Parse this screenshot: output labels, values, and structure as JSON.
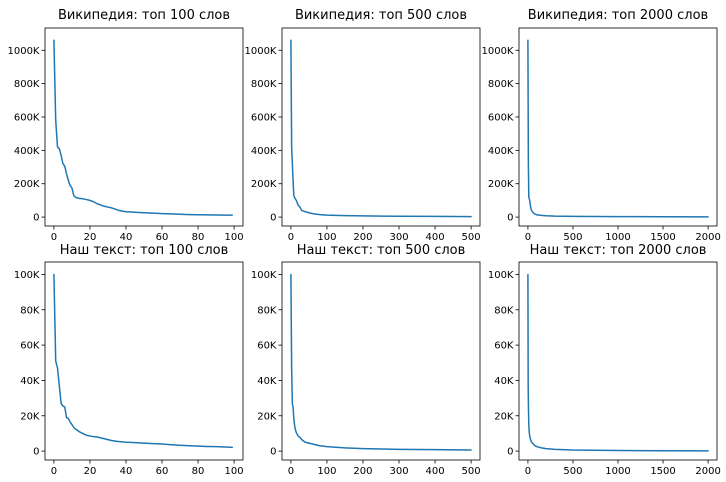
{
  "figure": {
    "line_color": "#1f77b4",
    "background": "#ffffff"
  },
  "chart_data": [
    {
      "type": "line",
      "title": "Википедия: топ 100 слов",
      "xlabel": "",
      "ylabel": "",
      "xlim": [
        0,
        100
      ],
      "ylim": [
        0,
        1080000
      ],
      "x_ticks": [
        0,
        20,
        40,
        60,
        80,
        100
      ],
      "x_tick_labels": [
        "0",
        "20",
        "40",
        "60",
        "80",
        "100"
      ],
      "y_ticks": [
        0,
        200000,
        400000,
        600000,
        800000,
        1000000
      ],
      "y_tick_labels": [
        "0",
        "200K",
        "400K",
        "600K",
        "800K",
        "1000K"
      ],
      "grid": false,
      "x": [
        0,
        1,
        2,
        3,
        4,
        5,
        6,
        7,
        8,
        9,
        10,
        11,
        12,
        14,
        16,
        18,
        20,
        22,
        24,
        26,
        28,
        30,
        32,
        34,
        36,
        38,
        40,
        45,
        50,
        55,
        60,
        65,
        70,
        75,
        80,
        85,
        90,
        95,
        99
      ],
      "y": [
        1060000,
        580000,
        420000,
        410000,
        370000,
        320000,
        305000,
        260000,
        220000,
        190000,
        175000,
        130000,
        118000,
        112000,
        110000,
        105000,
        100000,
        92000,
        80000,
        72000,
        65000,
        60000,
        55000,
        48000,
        40000,
        36000,
        32000,
        29000,
        26000,
        24000,
        21000,
        19000,
        17000,
        15000,
        14000,
        13000,
        12500,
        12000,
        11500
      ]
    },
    {
      "type": "line",
      "title": "Википедия: топ 500 слов",
      "xlabel": "",
      "ylabel": "",
      "xlim": [
        0,
        500
      ],
      "ylim": [
        0,
        1080000
      ],
      "x_ticks": [
        0,
        100,
        200,
        300,
        400,
        500
      ],
      "x_tick_labels": [
        "0",
        "100",
        "200",
        "300",
        "400",
        "500"
      ],
      "y_ticks": [
        0,
        200000,
        400000,
        600000,
        800000,
        1000000
      ],
      "y_tick_labels": [
        "0",
        "200K",
        "400K",
        "600K",
        "800K",
        "1000K"
      ],
      "grid": false,
      "x": [
        0,
        2,
        4,
        6,
        8,
        10,
        12,
        15,
        20,
        25,
        30,
        40,
        50,
        60,
        80,
        100,
        150,
        200,
        300,
        400,
        500
      ],
      "y": [
        1060000,
        420000,
        320000,
        220000,
        130000,
        118000,
        110000,
        100000,
        72000,
        60000,
        40000,
        32000,
        26000,
        21000,
        15000,
        12000,
        9000,
        7000,
        5000,
        4000,
        3000
      ]
    },
    {
      "type": "line",
      "title": "Википедия: топ 2000 слов",
      "xlabel": "",
      "ylabel": "",
      "xlim": [
        0,
        2000
      ],
      "ylim": [
        0,
        1080000
      ],
      "x_ticks": [
        0,
        500,
        1000,
        1500,
        2000
      ],
      "x_tick_labels": [
        "0",
        "500",
        "1000",
        "1500",
        "2000"
      ],
      "y_ticks": [
        0,
        200000,
        400000,
        600000,
        800000,
        1000000
      ],
      "y_tick_labels": [
        "0",
        "200K",
        "400K",
        "600K",
        "800K",
        "1000K"
      ],
      "grid": false,
      "x": [
        0,
        5,
        10,
        20,
        30,
        40,
        60,
        80,
        100,
        150,
        200,
        300,
        500,
        1000,
        1500,
        2000
      ],
      "y": [
        1060000,
        320000,
        120000,
        100000,
        60000,
        40000,
        25000,
        18000,
        13000,
        10000,
        8000,
        6000,
        4500,
        3000,
        2000,
        1500
      ]
    },
    {
      "type": "line",
      "title": "Наш текст: топ 100 слов",
      "xlabel": "",
      "ylabel": "",
      "xlim": [
        0,
        100
      ],
      "ylim": [
        0,
        102000
      ],
      "x_ticks": [
        0,
        20,
        40,
        60,
        80,
        100
      ],
      "x_tick_labels": [
        "0",
        "20",
        "40",
        "60",
        "80",
        "100"
      ],
      "y_ticks": [
        0,
        20000,
        40000,
        60000,
        80000,
        100000
      ],
      "y_tick_labels": [
        "0",
        "20K",
        "40K",
        "60K",
        "80K",
        "100K"
      ],
      "grid": false,
      "x": [
        0,
        1,
        2,
        3,
        4,
        5,
        6,
        7,
        8,
        9,
        10,
        11,
        12,
        14,
        16,
        18,
        20,
        22,
        24,
        26,
        28,
        30,
        32,
        35,
        40,
        45,
        50,
        55,
        60,
        65,
        70,
        75,
        80,
        85,
        90,
        95,
        99
      ],
      "y": [
        100000,
        51000,
        47000,
        37000,
        27000,
        25500,
        25000,
        19000,
        18500,
        16500,
        15000,
        13500,
        12500,
        11000,
        10000,
        9000,
        8500,
        8200,
        8000,
        7500,
        7000,
        6500,
        6000,
        5500,
        5000,
        4800,
        4500,
        4200,
        4000,
        3600,
        3300,
        3000,
        2800,
        2600,
        2500,
        2300,
        2100
      ]
    },
    {
      "type": "line",
      "title": "Наш текст: топ 500 слов",
      "xlabel": "",
      "ylabel": "",
      "xlim": [
        0,
        500
      ],
      "ylim": [
        0,
        102000
      ],
      "x_ticks": [
        0,
        100,
        200,
        300,
        400,
        500
      ],
      "x_tick_labels": [
        "0",
        "100",
        "200",
        "300",
        "400",
        "500"
      ],
      "y_ticks": [
        0,
        20000,
        40000,
        60000,
        80000,
        100000
      ],
      "y_tick_labels": [
        "0",
        "20K",
        "40K",
        "60K",
        "80K",
        "100K"
      ],
      "grid": false,
      "x": [
        0,
        2,
        4,
        6,
        8,
        10,
        12,
        15,
        20,
        25,
        30,
        40,
        50,
        60,
        80,
        100,
        150,
        200,
        300,
        400,
        500
      ],
      "y": [
        100000,
        47000,
        27000,
        25000,
        18500,
        15000,
        12500,
        10500,
        8500,
        7800,
        6500,
        5000,
        4500,
        4000,
        3000,
        2500,
        1800,
        1400,
        1000,
        800,
        600
      ]
    },
    {
      "type": "line",
      "title": "Наш текст: топ 2000 слов",
      "xlabel": "",
      "ylabel": "",
      "xlim": [
        0,
        2000
      ],
      "ylim": [
        0,
        102000
      ],
      "x_ticks": [
        0,
        500,
        1000,
        1500,
        2000
      ],
      "x_tick_labels": [
        "0",
        "500",
        "1000",
        "1500",
        "2000"
      ],
      "y_ticks": [
        0,
        20000,
        40000,
        60000,
        80000,
        100000
      ],
      "y_tick_labels": [
        "0",
        "20K",
        "40K",
        "60K",
        "80K",
        "100K"
      ],
      "grid": false,
      "x": [
        0,
        3,
        6,
        10,
        15,
        20,
        30,
        40,
        60,
        80,
        100,
        150,
        200,
        300,
        500,
        1000,
        1500,
        2000
      ],
      "y": [
        100000,
        37000,
        25000,
        15000,
        10500,
        8500,
        6500,
        5000,
        4000,
        3000,
        2500,
        1800,
        1400,
        1000,
        600,
        300,
        200,
        150
      ]
    }
  ]
}
